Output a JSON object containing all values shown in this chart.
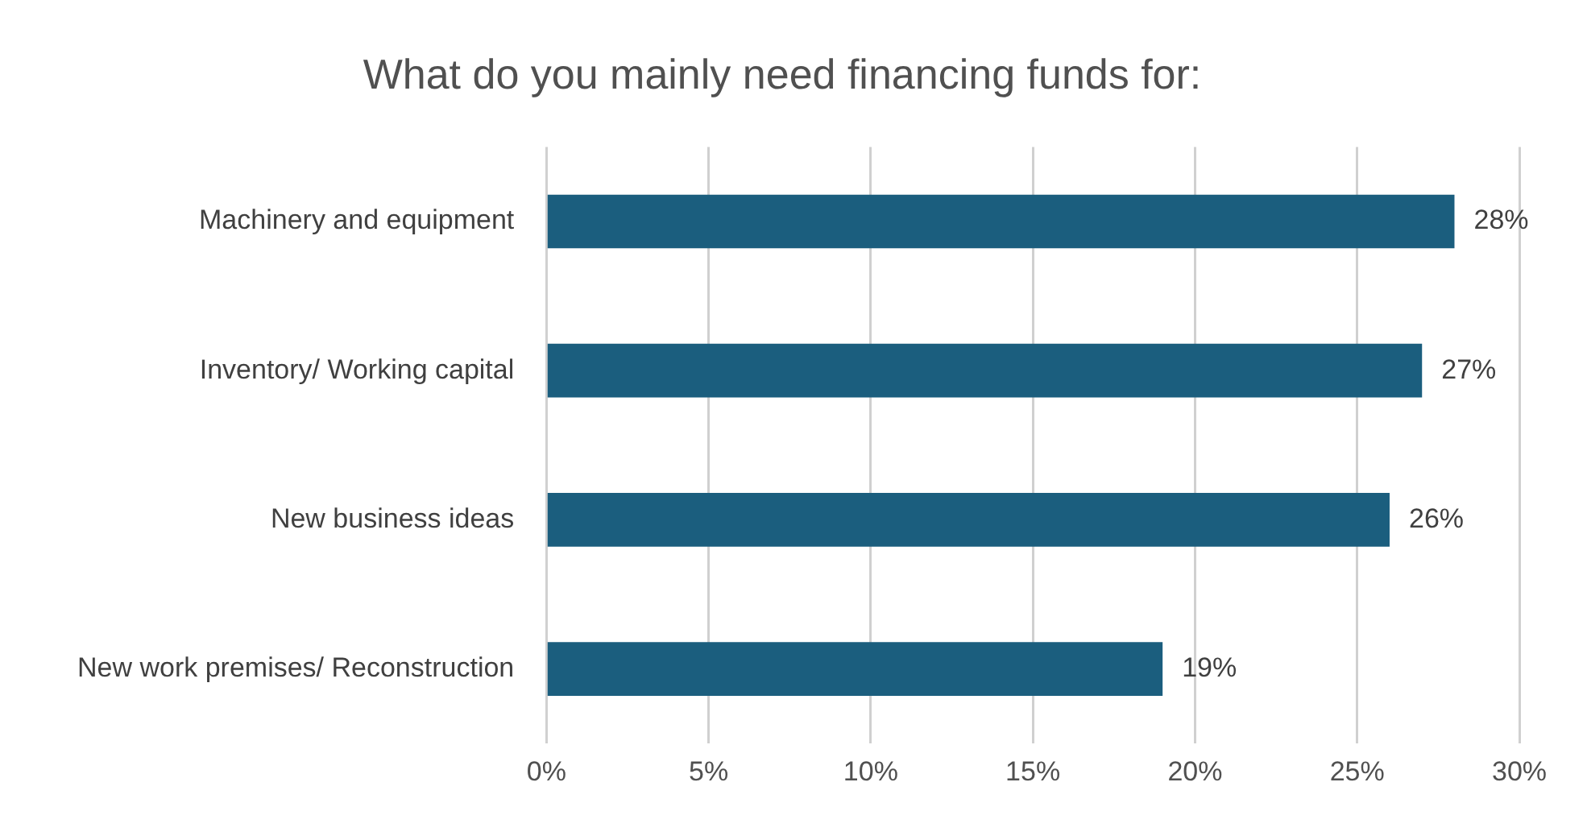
{
  "chart_data": {
    "type": "bar",
    "orientation": "horizontal",
    "title": "What do you mainly need financing funds for:",
    "categories": [
      "Machinery and equipment",
      "Inventory/ Working capital",
      "New business ideas",
      "New work premises/ Reconstruction"
    ],
    "values": [
      28,
      27,
      26,
      19
    ],
    "value_labels": [
      "28%",
      "27%",
      "26%",
      "19%"
    ],
    "color": "#1b5e7e",
    "xlim": [
      0,
      30
    ],
    "xticks": [
      {
        "value": 0,
        "label": "0%"
      },
      {
        "value": 5,
        "label": "5%"
      },
      {
        "value": 10,
        "label": "10%"
      },
      {
        "value": 15,
        "label": "15%"
      },
      {
        "value": 20,
        "label": "20%"
      },
      {
        "value": 25,
        "label": "25%"
      },
      {
        "value": 30,
        "label": "30%"
      }
    ],
    "grid": "x",
    "legend": false
  }
}
